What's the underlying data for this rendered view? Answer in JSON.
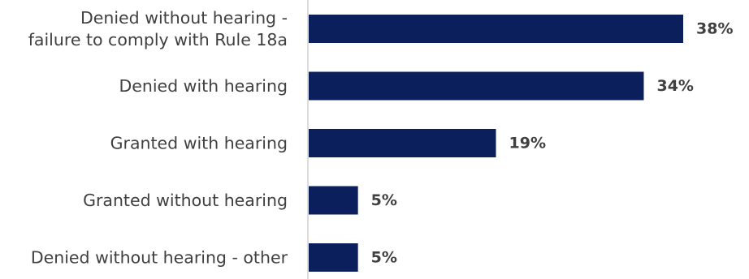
{
  "chart_data": {
    "type": "bar",
    "orientation": "horizontal",
    "categories": [
      [
        "Denied without hearing -",
        "failure to comply with Rule 18a"
      ],
      [
        "Denied with hearing"
      ],
      [
        "Granted with hearing"
      ],
      [
        "Granted without hearing"
      ],
      [
        "Denied without hearing - other"
      ]
    ],
    "values": [
      38,
      34,
      19,
      5,
      5
    ],
    "value_labels": [
      "38%",
      "34%",
      "19%",
      "5%",
      "5%"
    ],
    "unit": "%",
    "xlim": [
      0,
      38
    ],
    "grid": false,
    "legend": "none",
    "bar_color": "#0b1f5c",
    "axis_color": "#d0d0d0",
    "text_color": "#404040"
  }
}
